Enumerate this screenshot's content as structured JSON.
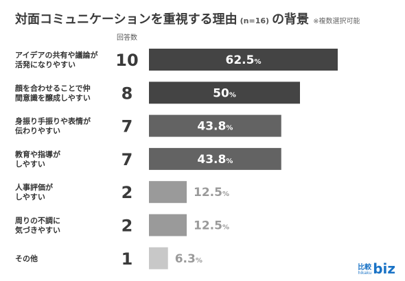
{
  "title": {
    "main": "対面コミュニケーションを重視する理由",
    "n_label": "(n=16)",
    "tail": "の背景",
    "note": "※複数選択可能"
  },
  "logo": {
    "jp": "比較",
    "small": "hikaku",
    "biz": "biz"
  },
  "chart_data": {
    "type": "bar",
    "orientation": "horizontal",
    "count_header": "回答数",
    "categories": [
      "アイデアの共有や議論が\n活発になりやすい",
      "顔を合わせることで仲\n間意識を醸成しやすい",
      "身振り手振りや表情が\n伝わりやすい",
      "教育や指導が\nしやすい",
      "人事評価が\nしやすい",
      "周りの不調に\n気づきやすい",
      "その他"
    ],
    "counts": [
      10,
      8,
      7,
      7,
      2,
      2,
      1
    ],
    "values": [
      62.5,
      50,
      43.8,
      43.8,
      12.5,
      12.5,
      6.3
    ],
    "value_labels": [
      "62.5",
      "50",
      "43.8",
      "43.8",
      "12.5",
      "12.5",
      "6.3"
    ],
    "unit": "%",
    "bar_colors": [
      "#444444",
      "#444444",
      "#636363",
      "#636363",
      "#9a9a9a",
      "#9a9a9a",
      "#c8c8c8"
    ],
    "xlim": [
      0,
      100
    ],
    "grid": false,
    "legend": "none"
  }
}
